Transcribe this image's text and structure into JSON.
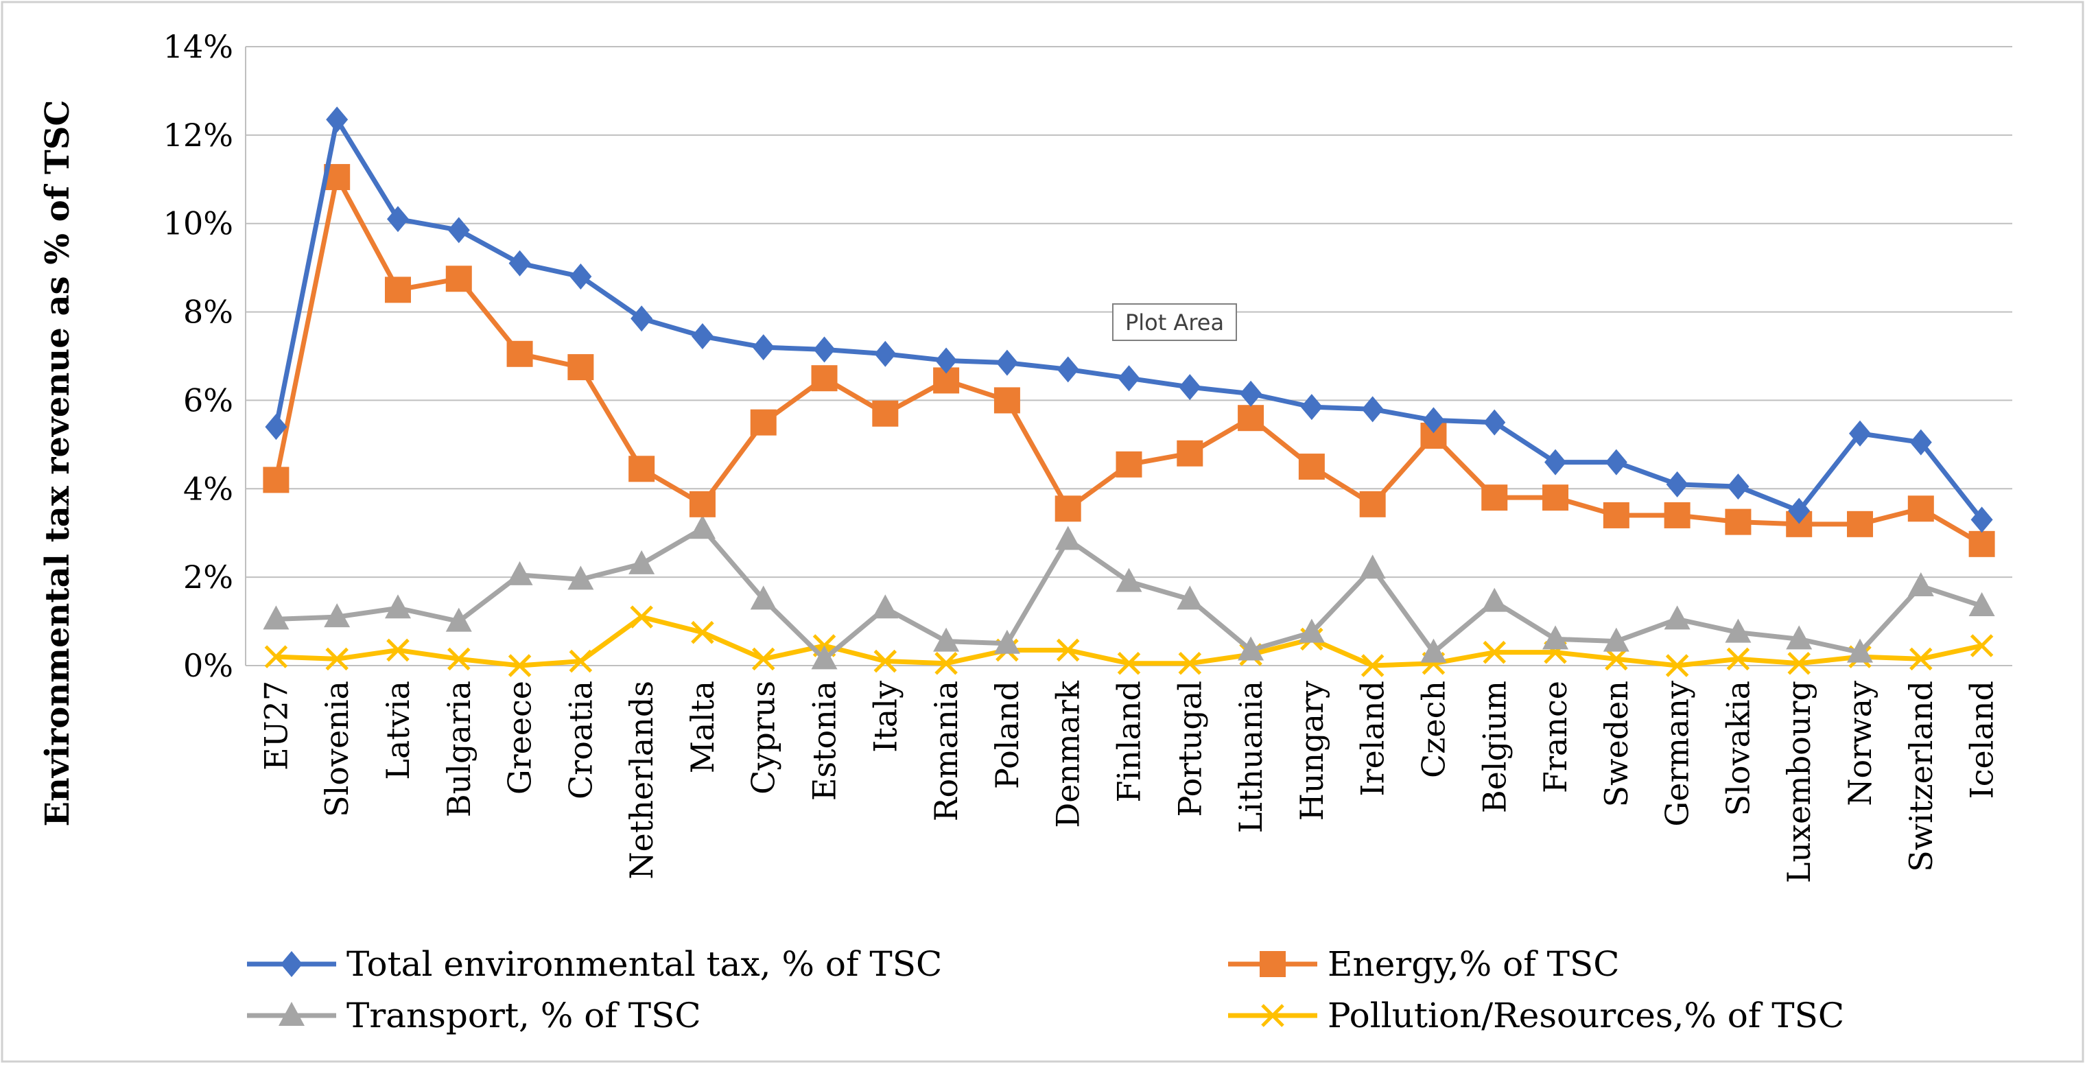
{
  "chart_data": {
    "type": "line",
    "title": "",
    "xlabel": "",
    "ylabel": "Environmental tax revenue as % of TSC",
    "ylim": [
      0,
      14
    ],
    "yticks": [
      "0%",
      "2%",
      "4%",
      "6%",
      "8%",
      "10%",
      "12%",
      "14%"
    ],
    "grid": true,
    "legend_position": "bottom",
    "tooltip": "Plot Area",
    "categories": [
      "EU27",
      "Slovenia",
      "Latvia",
      "Bulgaria",
      "Greece",
      "Croatia",
      "Netherlands",
      "Malta",
      "Cyprus",
      "Estonia",
      "Italy",
      "Romania",
      "Poland",
      "Denmark",
      "Finland",
      "Portugal",
      "Lithuania",
      "Hungary",
      "Ireland",
      "Czech",
      "Belgium",
      "France",
      "Sweden",
      "Germany",
      "Slovakia",
      "Luxembourg",
      "Norway",
      "Switzerland",
      "Iceland"
    ],
    "series": [
      {
        "name": "Total environmental tax, % of TSC",
        "color": "#4472C4",
        "marker": "diamond",
        "values": [
          5.4,
          12.35,
          10.1,
          9.85,
          9.1,
          8.8,
          7.85,
          7.45,
          7.2,
          7.15,
          7.05,
          6.9,
          6.85,
          6.7,
          6.5,
          6.3,
          6.15,
          5.85,
          5.8,
          5.55,
          5.5,
          4.6,
          4.6,
          4.1,
          4.05,
          3.5,
          5.25,
          5.05,
          3.3
        ]
      },
      {
        "name": "Energy,% of TSC",
        "color": "#ED7D31",
        "marker": "square",
        "values": [
          4.2,
          11.05,
          8.5,
          8.75,
          7.05,
          6.75,
          4.45,
          3.65,
          5.5,
          6.5,
          5.7,
          6.45,
          6.0,
          3.55,
          4.55,
          4.8,
          5.6,
          4.5,
          3.65,
          5.2,
          3.8,
          3.8,
          3.4,
          3.4,
          3.25,
          3.2,
          3.2,
          3.55,
          2.75
        ]
      },
      {
        "name": "Transport, % of TSC",
        "color": "#A5A5A5",
        "marker": "triangle",
        "values": [
          1.05,
          1.1,
          1.3,
          1.0,
          2.05,
          1.95,
          2.3,
          3.1,
          1.5,
          0.15,
          1.3,
          0.55,
          0.5,
          2.85,
          1.9,
          1.5,
          0.35,
          0.75,
          2.2,
          0.3,
          1.45,
          0.6,
          0.55,
          1.05,
          0.75,
          0.6,
          0.3,
          1.8,
          1.35
        ]
      },
      {
        "name": "Pollution/Resources,% of TSC",
        "color": "#FFC000",
        "marker": "x",
        "values": [
          0.2,
          0.15,
          0.35,
          0.15,
          0.0,
          0.1,
          1.1,
          0.75,
          0.15,
          0.45,
          0.1,
          0.05,
          0.35,
          0.35,
          0.05,
          0.05,
          0.25,
          0.6,
          0.0,
          0.05,
          0.3,
          0.3,
          0.15,
          0.0,
          0.15,
          0.05,
          0.2,
          0.15,
          0.45
        ]
      }
    ]
  }
}
